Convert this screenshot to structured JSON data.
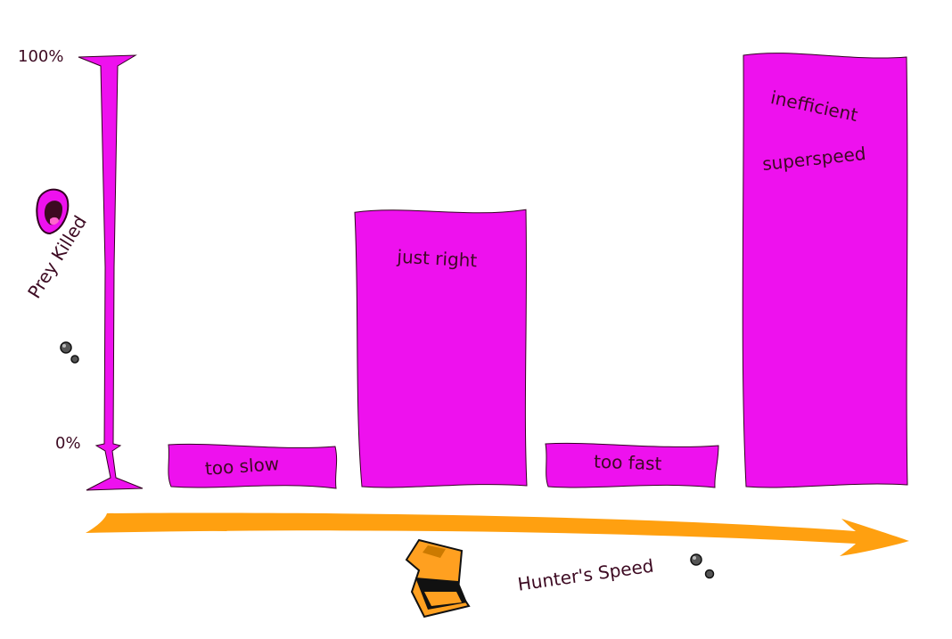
{
  "chart_data": {
    "type": "bar",
    "categories": [
      "too slow",
      "just right",
      "too fast",
      "inefficient superspeed"
    ],
    "values": [
      0,
      60,
      0,
      100
    ],
    "ylim": [
      0,
      100
    ],
    "xlabel": "Hunter's Speed",
    "ylabel": "Prey Killed",
    "y_ticks": [
      "100%",
      "0%"
    ],
    "grid": false,
    "legend": "none"
  },
  "bar_labels": {
    "b0": "too slow",
    "b1": "just right",
    "b2": "too fast",
    "b3_line1": "inefficient",
    "b3_line2": "superspeed"
  },
  "colors": {
    "bar": "#ee11ee",
    "axis": "#dd11dd",
    "arrow": "#ffa010",
    "text": "#3d0a22"
  },
  "icons": [
    "prey-creature-icon",
    "thought-bubble-icon",
    "hunter-creature-icon"
  ]
}
